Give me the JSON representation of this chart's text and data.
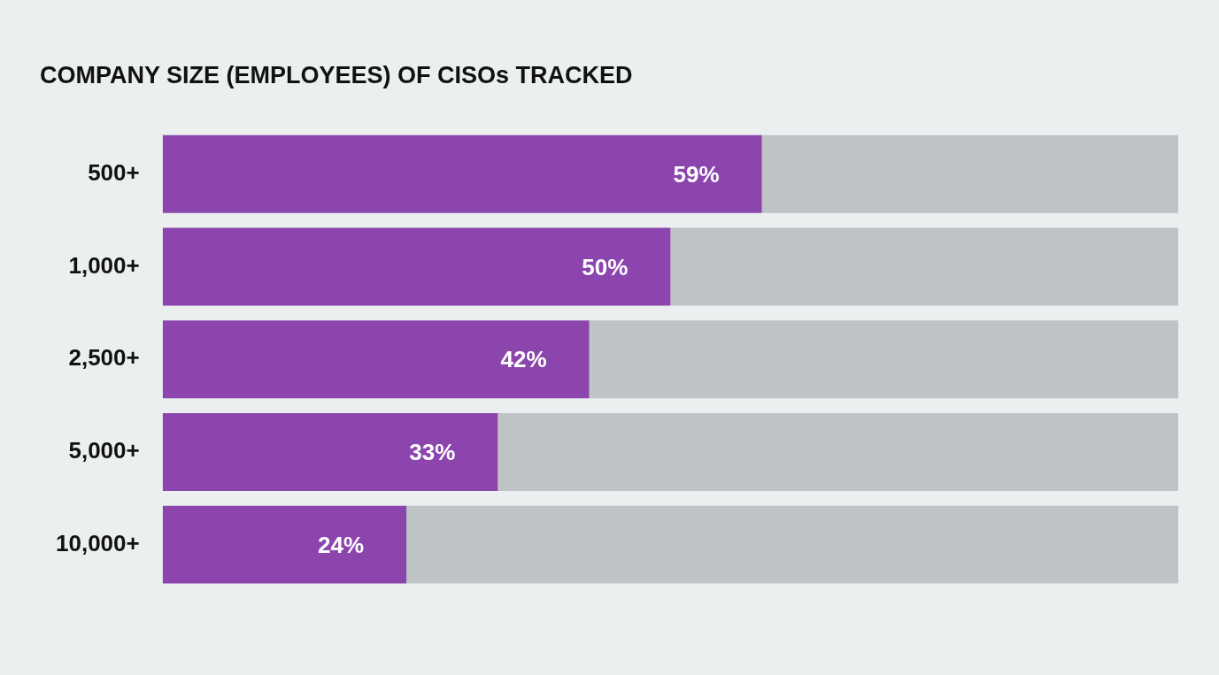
{
  "chart_data": {
    "type": "bar",
    "orientation": "horizontal",
    "stacked": true,
    "title": "COMPANY SIZE (EMPLOYEES) OF CISOs TRACKED",
    "categories": [
      "500+",
      "1,000+",
      "2,500+",
      "5,000+",
      "10,000+"
    ],
    "series": [
      {
        "color": "#8b45ad",
        "values": [
          59,
          50,
          42,
          33,
          24
        ],
        "value_labels": [
          "59%",
          "50%",
          "42%",
          "33%",
          "24%"
        ]
      },
      {
        "color": "#bec3c6",
        "values": [
          41,
          50,
          58,
          67,
          76
        ]
      }
    ],
    "tick_labels": "y",
    "legend": false
  }
}
